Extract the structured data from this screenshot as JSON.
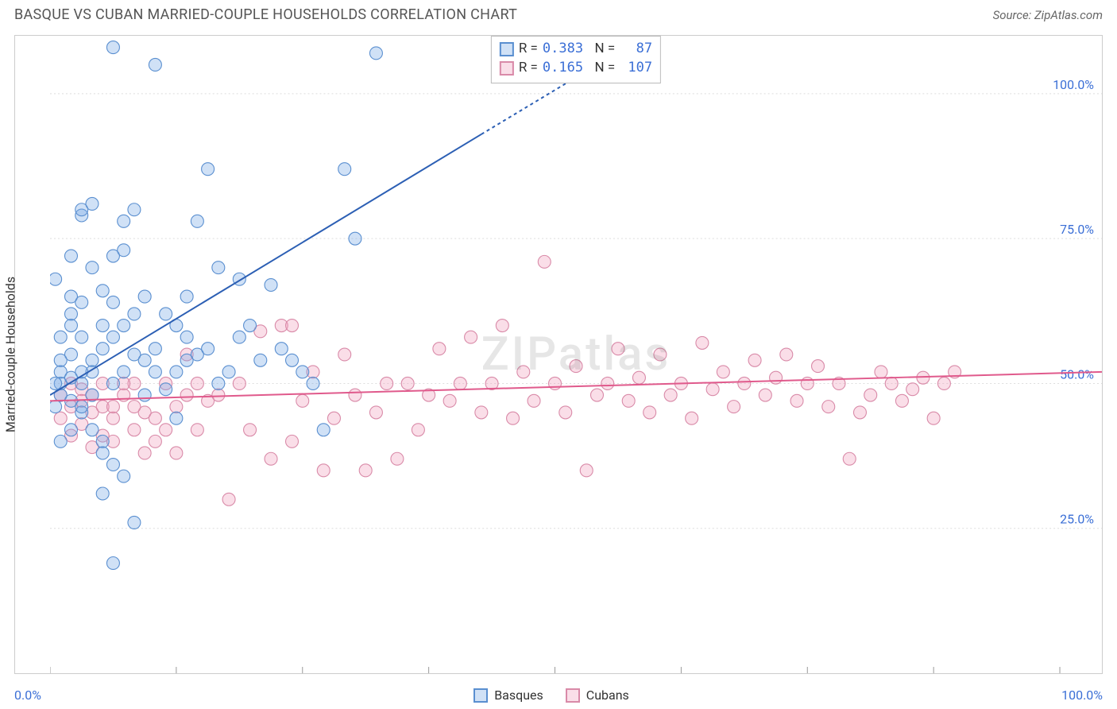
{
  "header": {
    "title": "BASQUE VS CUBAN MARRIED-COUPLE HOUSEHOLDS CORRELATION CHART",
    "source": "Source: ZipAtlas.com"
  },
  "chart": {
    "type": "scatter",
    "ylabel": "Married-couple Households",
    "watermark": "ZIPatlas",
    "xlim": [
      0,
      100
    ],
    "ylim": [
      0,
      110
    ],
    "xticks_major": [
      0,
      12,
      24,
      36,
      48,
      60,
      72,
      84,
      96
    ],
    "yticks": [
      {
        "value": 25,
        "label": "25.0%"
      },
      {
        "value": 50,
        "label": "50.0%"
      },
      {
        "value": 75,
        "label": "75.0%"
      },
      {
        "value": 100,
        "label": "100.0%"
      }
    ],
    "xlim_labels": {
      "min": "0.0%",
      "max": "100.0%"
    },
    "grid_color": "#dddddd",
    "border_color": "#cccccc",
    "background_color": "#ffffff",
    "marker_radius": 8,
    "marker_stroke_width": 1.1,
    "trend_line_width": 2,
    "trend_dash": "4 4",
    "series": {
      "basques": {
        "label": "Basques",
        "fill": "rgba(120,170,230,0.35)",
        "stroke": "#5a8fd0",
        "line_color": "#2c5fb4",
        "trend": {
          "x1": 0,
          "y1": 48,
          "x2_solid": 41,
          "y2_solid": 93,
          "x2_dash": 52,
          "y2_dash": 105
        },
        "R": "0.383",
        "N": "87",
        "points": [
          [
            1,
            50
          ],
          [
            1,
            52
          ],
          [
            1,
            48
          ],
          [
            0.5,
            68
          ],
          [
            2,
            51
          ],
          [
            2,
            55
          ],
          [
            2,
            62
          ],
          [
            2,
            72
          ],
          [
            3,
            79
          ],
          [
            3,
            80
          ],
          [
            4,
            81
          ],
          [
            4,
            70
          ],
          [
            3,
            50
          ],
          [
            3,
            58
          ],
          [
            4,
            54
          ],
          [
            5,
            56
          ],
          [
            6,
            58
          ],
          [
            6,
            108
          ],
          [
            2,
            47
          ],
          [
            1,
            40
          ],
          [
            2,
            42
          ],
          [
            3,
            45
          ],
          [
            4,
            48
          ],
          [
            4,
            52
          ],
          [
            5,
            60
          ],
          [
            6,
            50
          ],
          [
            6,
            64
          ],
          [
            7,
            52
          ],
          [
            7,
            60
          ],
          [
            8,
            55
          ],
          [
            8,
            62
          ],
          [
            8,
            80
          ],
          [
            9,
            54
          ],
          [
            9,
            65
          ],
          [
            10,
            56
          ],
          [
            10,
            52
          ],
          [
            10,
            105
          ],
          [
            12,
            60
          ],
          [
            12,
            52
          ],
          [
            13,
            54
          ],
          [
            13,
            58
          ],
          [
            14,
            55
          ],
          [
            14,
            78
          ],
          [
            15,
            56
          ],
          [
            15,
            87
          ],
          [
            16,
            50
          ],
          [
            16,
            70
          ],
          [
            17,
            52
          ],
          [
            18,
            58
          ],
          [
            18,
            68
          ],
          [
            19,
            60
          ],
          [
            20,
            54
          ],
          [
            21,
            67
          ],
          [
            22,
            56
          ],
          [
            23,
            54
          ],
          [
            24,
            52
          ],
          [
            25,
            50
          ],
          [
            26,
            42
          ],
          [
            3,
            46
          ],
          [
            4,
            42
          ],
          [
            5,
            40
          ],
          [
            5,
            38
          ],
          [
            6,
            36
          ],
          [
            7,
            34
          ],
          [
            2,
            60
          ],
          [
            2,
            65
          ],
          [
            1,
            58
          ],
          [
            1,
            54
          ],
          [
            0.5,
            50
          ],
          [
            0.5,
            46
          ],
          [
            3,
            52
          ],
          [
            3,
            64
          ],
          [
            5,
            66
          ],
          [
            6,
            72
          ],
          [
            7,
            73
          ],
          [
            7,
            78
          ],
          [
            8,
            26
          ],
          [
            9,
            48
          ],
          [
            11,
            49
          ],
          [
            11,
            62
          ],
          [
            12,
            44
          ],
          [
            13,
            65
          ],
          [
            28,
            87
          ],
          [
            29,
            75
          ],
          [
            31,
            107
          ],
          [
            6,
            19
          ],
          [
            5,
            31
          ]
        ]
      },
      "cubans": {
        "label": "Cubans",
        "fill": "rgba(240,160,190,0.35)",
        "stroke": "#d98aa8",
        "line_color": "#e05a8c",
        "trend": {
          "x1": 0,
          "y1": 47,
          "x2_solid": 100,
          "y2_solid": 52,
          "x2_dash": 100,
          "y2_dash": 52
        },
        "R": "0.165",
        "N": "107",
        "points": [
          [
            1,
            48
          ],
          [
            2,
            50
          ],
          [
            2,
            46
          ],
          [
            3,
            49
          ],
          [
            3,
            47
          ],
          [
            4,
            48
          ],
          [
            4,
            45
          ],
          [
            5,
            50
          ],
          [
            5,
            46
          ],
          [
            6,
            40
          ],
          [
            6,
            44
          ],
          [
            7,
            48
          ],
          [
            8,
            42
          ],
          [
            8,
            50
          ],
          [
            9,
            45
          ],
          [
            10,
            44
          ],
          [
            11,
            50
          ],
          [
            12,
            38
          ],
          [
            13,
            55
          ],
          [
            14,
            42
          ],
          [
            15,
            47
          ],
          [
            16,
            48
          ],
          [
            17,
            30
          ],
          [
            18,
            50
          ],
          [
            19,
            42
          ],
          [
            20,
            59
          ],
          [
            21,
            37
          ],
          [
            22,
            60
          ],
          [
            23,
            40
          ],
          [
            23,
            60
          ],
          [
            24,
            47
          ],
          [
            25,
            52
          ],
          [
            26,
            35
          ],
          [
            27,
            44
          ],
          [
            28,
            55
          ],
          [
            29,
            48
          ],
          [
            30,
            35
          ],
          [
            31,
            45
          ],
          [
            32,
            50
          ],
          [
            33,
            37
          ],
          [
            34,
            50
          ],
          [
            35,
            42
          ],
          [
            36,
            48
          ],
          [
            37,
            56
          ],
          [
            38,
            47
          ],
          [
            39,
            50
          ],
          [
            40,
            58
          ],
          [
            41,
            45
          ],
          [
            42,
            50
          ],
          [
            43,
            60
          ],
          [
            44,
            44
          ],
          [
            45,
            52
          ],
          [
            46,
            47
          ],
          [
            47,
            71
          ],
          [
            48,
            50
          ],
          [
            49,
            45
          ],
          [
            50,
            53
          ],
          [
            51,
            35
          ],
          [
            52,
            48
          ],
          [
            53,
            50
          ],
          [
            54,
            56
          ],
          [
            55,
            47
          ],
          [
            56,
            51
          ],
          [
            57,
            45
          ],
          [
            58,
            55
          ],
          [
            59,
            48
          ],
          [
            60,
            50
          ],
          [
            61,
            44
          ],
          [
            62,
            57
          ],
          [
            63,
            49
          ],
          [
            64,
            52
          ],
          [
            65,
            46
          ],
          [
            66,
            50
          ],
          [
            67,
            54
          ],
          [
            68,
            48
          ],
          [
            69,
            51
          ],
          [
            70,
            55
          ],
          [
            71,
            47
          ],
          [
            72,
            50
          ],
          [
            73,
            53
          ],
          [
            74,
            46
          ],
          [
            75,
            50
          ],
          [
            76,
            37
          ],
          [
            77,
            45
          ],
          [
            78,
            48
          ],
          [
            79,
            52
          ],
          [
            80,
            50
          ],
          [
            81,
            47
          ],
          [
            82,
            49
          ],
          [
            83,
            51
          ],
          [
            84,
            44
          ],
          [
            85,
            50
          ],
          [
            86,
            52
          ],
          [
            1,
            44
          ],
          [
            2,
            41
          ],
          [
            3,
            43
          ],
          [
            4,
            39
          ],
          [
            5,
            41
          ],
          [
            6,
            46
          ],
          [
            7,
            50
          ],
          [
            8,
            46
          ],
          [
            9,
            38
          ],
          [
            10,
            40
          ],
          [
            11,
            42
          ],
          [
            12,
            46
          ],
          [
            13,
            48
          ],
          [
            14,
            50
          ]
        ]
      }
    }
  },
  "legend_stats": {
    "rows": [
      {
        "key": "basques",
        "R_label": "R =",
        "N_label": "N ="
      },
      {
        "key": "cubans",
        "R_label": "R =",
        "N_label": "N ="
      }
    ]
  }
}
